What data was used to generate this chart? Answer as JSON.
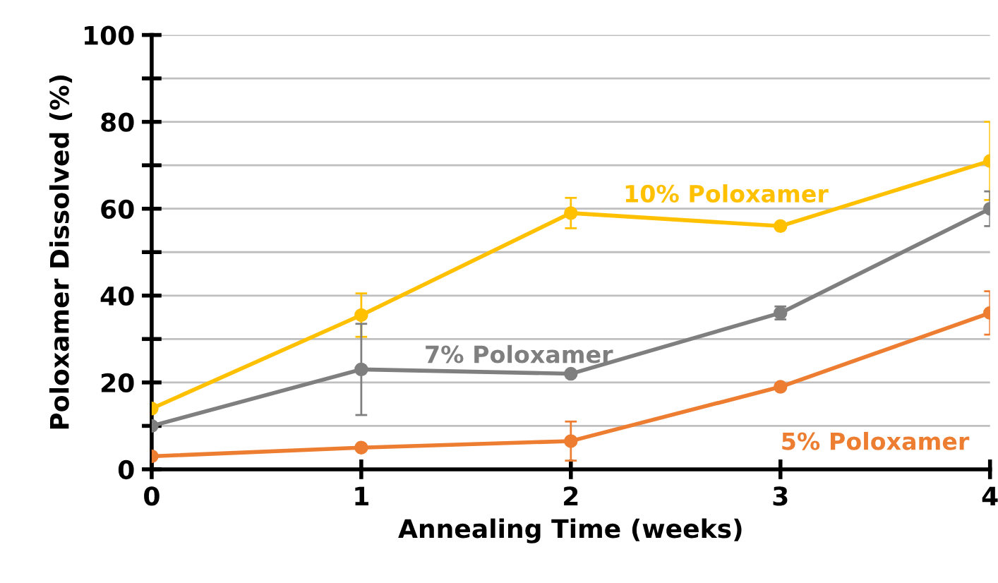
{
  "chart_data": {
    "type": "line",
    "xlabel": "Annealing Time (weeks)",
    "ylabel": "Poloxamer Dissolved (%)",
    "x": [
      0,
      1,
      2,
      3,
      4
    ],
    "series": [
      {
        "name": "10% Poloxamer",
        "color": "#ffc000",
        "values": [
          14,
          35.5,
          59,
          56,
          71
        ],
        "errors": [
          null,
          5,
          3.5,
          null,
          9
        ]
      },
      {
        "name": "7% Poloxamer",
        "color": "#7f7f7f",
        "values": [
          10,
          23,
          22,
          36,
          60
        ],
        "errors": [
          null,
          10.5,
          null,
          1.5,
          4
        ]
      },
      {
        "name": "5% Poloxamer",
        "color": "#ed7d31",
        "values": [
          3,
          5,
          6.5,
          19,
          36
        ],
        "errors": [
          null,
          null,
          4.5,
          null,
          5
        ]
      }
    ],
    "xlim": [
      0,
      4
    ],
    "xticks": [
      0,
      1,
      2,
      3,
      4
    ],
    "ylim": [
      0,
      100
    ],
    "yticks": [
      0,
      {
        "value": 10,
        "label": null
      },
      20,
      {
        "value": 30,
        "label": null
      },
      40,
      {
        "value": 50,
        "label": null
      },
      60,
      {
        "value": 70,
        "label": null
      },
      80,
      {
        "value": 90,
        "label": null
      },
      100
    ],
    "grid": "y",
    "marker": "circle",
    "line_style": "solid"
  }
}
